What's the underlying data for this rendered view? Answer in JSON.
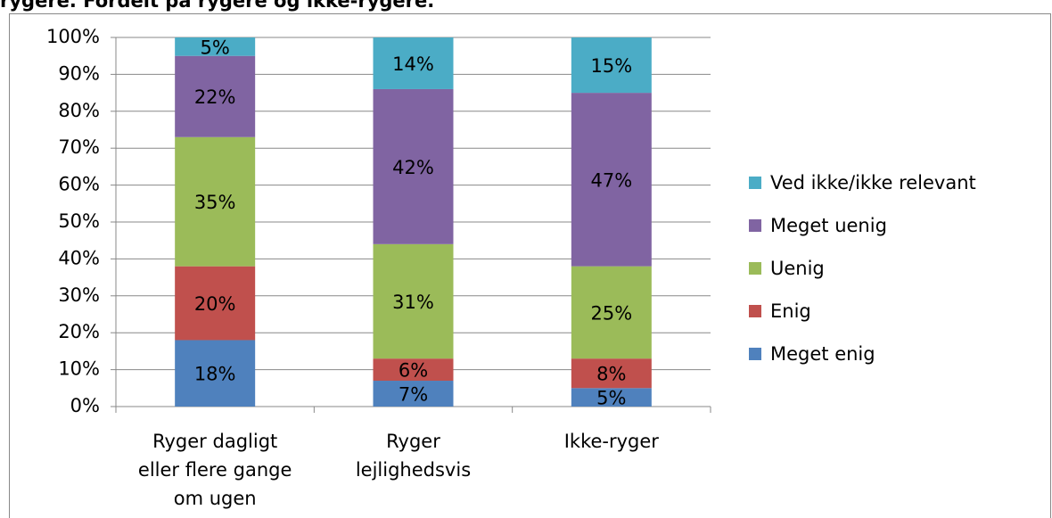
{
  "chart_data": {
    "type": "stacked_bar",
    "title": "rygere. Fordelt på rygere og ikke-rygere.",
    "categories": [
      "Ryger dagligt eller flere gange om ugen",
      "Ryger lejlighedsvis",
      "Ikke-ryger"
    ],
    "series": [
      {
        "name": "Meget enig",
        "color": "#4f81bd",
        "values": [
          18,
          7,
          5
        ],
        "value_labels": [
          "18%",
          "7%",
          "5%"
        ]
      },
      {
        "name": "Enig",
        "color": "#c0504d",
        "values": [
          20,
          6,
          8
        ],
        "value_labels": [
          "20%",
          "6%",
          "8%"
        ]
      },
      {
        "name": "Uenig",
        "color": "#9bbb59",
        "values": [
          35,
          31,
          25
        ],
        "value_labels": [
          "35%",
          "31%",
          "25%"
        ]
      },
      {
        "name": "Meget uenig",
        "color": "#8064a2",
        "values": [
          22,
          42,
          47
        ],
        "value_labels": [
          "22%",
          "42%",
          "47%"
        ]
      },
      {
        "name": "Ved ikke/ikke relevant",
        "color": "#4bacc6",
        "values": [
          5,
          14,
          15
        ],
        "value_labels": [
          "5%",
          "14%",
          "15%"
        ]
      }
    ],
    "ylim": [
      0,
      100
    ],
    "yticks": [
      {
        "value": 0,
        "label": "0%"
      },
      {
        "value": 10,
        "label": "10%"
      },
      {
        "value": 20,
        "label": "20%"
      },
      {
        "value": 30,
        "label": "30%"
      },
      {
        "value": 40,
        "label": "40%"
      },
      {
        "value": 50,
        "label": "50%"
      },
      {
        "value": 60,
        "label": "60%"
      },
      {
        "value": 70,
        "label": "70%"
      },
      {
        "value": 80,
        "label": "80%"
      },
      {
        "value": 90,
        "label": "90%"
      },
      {
        "value": 100,
        "label": "100%"
      }
    ],
    "grid": true,
    "legend": "right"
  }
}
